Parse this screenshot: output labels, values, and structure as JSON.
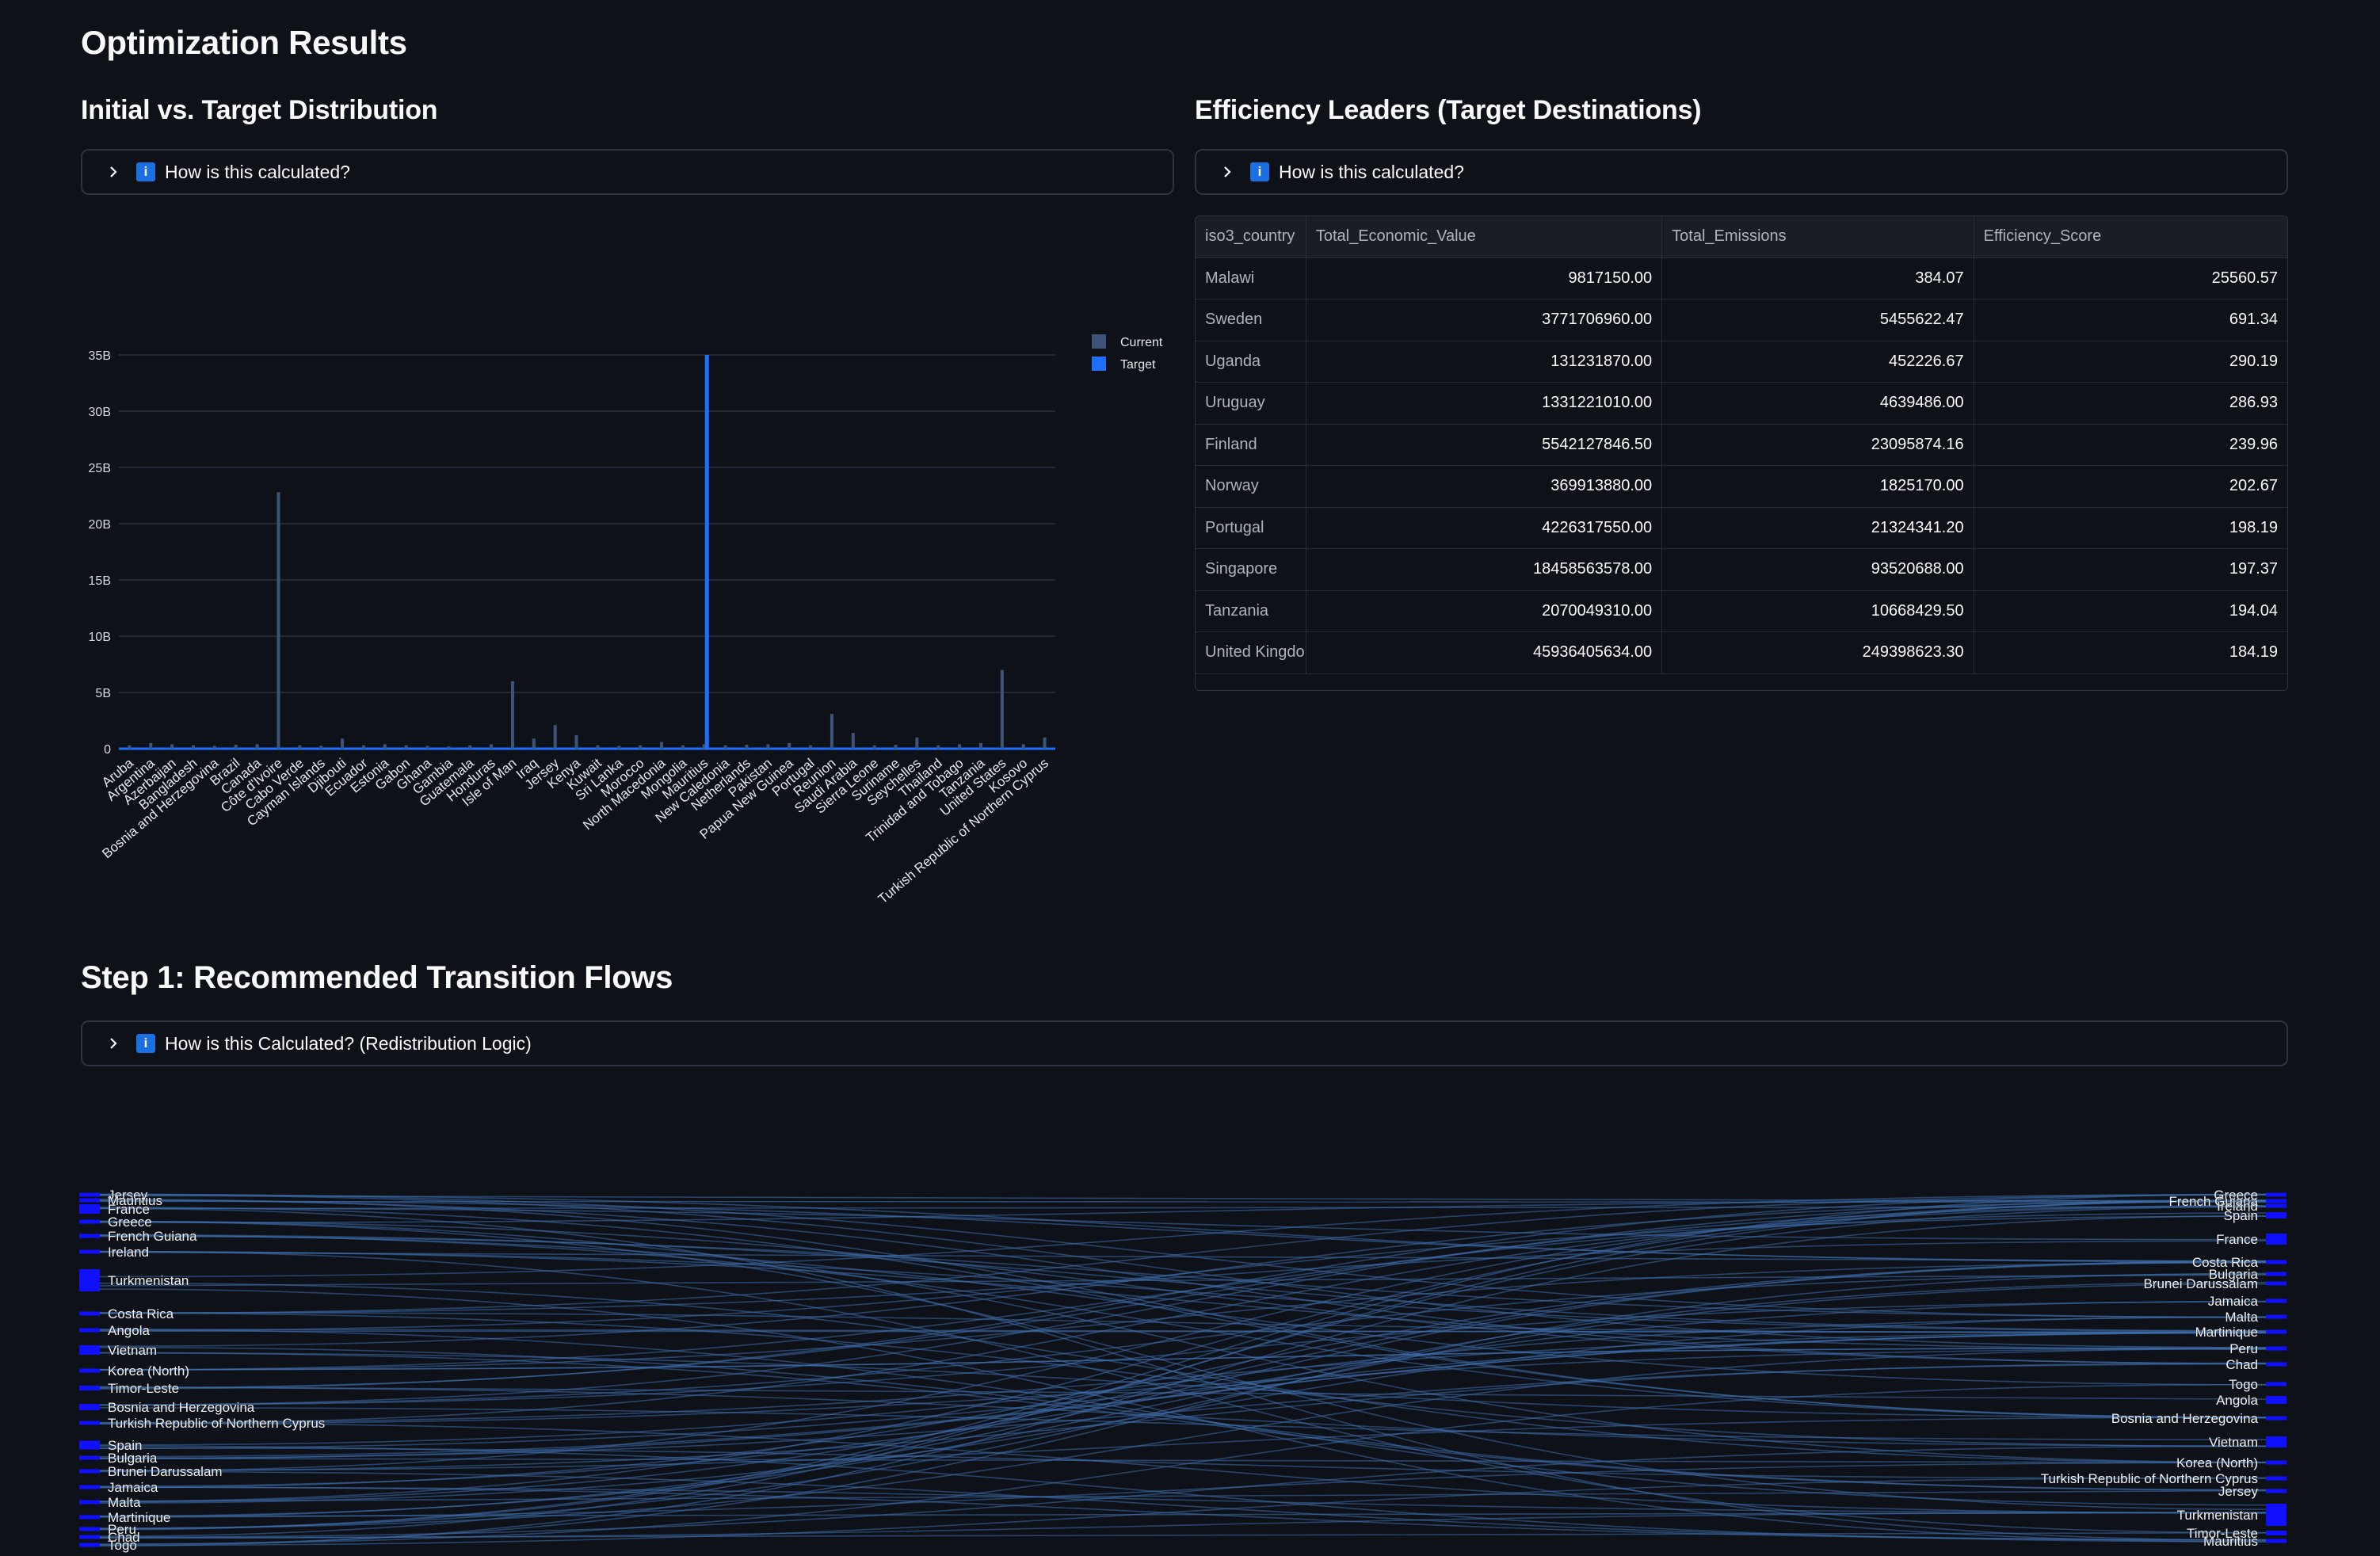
{
  "page_title": "Optimization Results",
  "chart_section": {
    "title": "Initial vs. Target Distribution",
    "expander_label": "How is this calculated?"
  },
  "table_section": {
    "title": "Efficiency Leaders (Target Destinations)",
    "expander_label": "How is this calculated?",
    "columns": [
      "iso3_country",
      "Total_Economic_Value",
      "Total_Emissions",
      "Efficiency_Score"
    ],
    "rows": [
      [
        "Malawi",
        "9817150.00",
        "384.07",
        "25560.57"
      ],
      [
        "Sweden",
        "3771706960.00",
        "5455622.47",
        "691.34"
      ],
      [
        "Uganda",
        "131231870.00",
        "452226.67",
        "290.19"
      ],
      [
        "Uruguay",
        "1331221010.00",
        "4639486.00",
        "286.93"
      ],
      [
        "Finland",
        "5542127846.50",
        "23095874.16",
        "239.96"
      ],
      [
        "Norway",
        "369913880.00",
        "1825170.00",
        "202.67"
      ],
      [
        "Portugal",
        "4226317550.00",
        "21324341.20",
        "198.19"
      ],
      [
        "Singapore",
        "18458563578.00",
        "93520688.00",
        "197.37"
      ],
      [
        "Tanzania",
        "2070049310.00",
        "10668429.50",
        "194.04"
      ],
      [
        "United Kingdo",
        "45936405634.00",
        "249398623.30",
        "184.19"
      ]
    ]
  },
  "flows_section": {
    "title": "Step 1: Recommended Transition Flows",
    "expander_label": "How is this Calculated? (Redistribution Logic)"
  },
  "chart_data": {
    "type": "bar",
    "title": "",
    "xlabel": "",
    "ylabel": "",
    "ylim": [
      0,
      35000000000
    ],
    "ytick_labels": [
      "0",
      "5B",
      "10B",
      "15B",
      "20B",
      "25B",
      "30B",
      "35B"
    ],
    "ytick_values": [
      0,
      5000000000,
      10000000000,
      15000000000,
      20000000000,
      25000000000,
      30000000000,
      35000000000
    ],
    "legend_position": "top-right",
    "categories": [
      "Aruba",
      "Argentina",
      "Azerbaijan",
      "Bangladesh",
      "Bosnia and Herzegovina",
      "Brazil",
      "Canada",
      "Côte d'Ivoire",
      "Cabo Verde",
      "Cayman Islands",
      "Djibouti",
      "Ecuador",
      "Estonia",
      "Gabon",
      "Ghana",
      "Gambia",
      "Guatemala",
      "Honduras",
      "Isle of Man",
      "Iraq",
      "Jersey",
      "Kenya",
      "Kuwait",
      "Sri Lanka",
      "Morocco",
      "North Macedonia",
      "Mongolia",
      "Mauritius",
      "New Caledonia",
      "Netherlands",
      "Pakistan",
      "Papua New Guinea",
      "Portugal",
      "Reunion",
      "Saudi Arabia",
      "Sierra Leone",
      "Suriname",
      "Seychelles",
      "Thailand",
      "Trinidad and Tobago",
      "Tanzania",
      "United States",
      "Kosovo",
      "Turkish Republic of Northern Cyprus"
    ],
    "series": [
      {
        "name": "Current",
        "color": "#3d5478",
        "values": [
          300000000,
          500000000,
          400000000,
          300000000,
          250000000,
          350000000,
          400000000,
          22800000000,
          300000000,
          250000000,
          900000000,
          300000000,
          400000000,
          300000000,
          250000000,
          200000000,
          300000000,
          400000000,
          6000000000,
          900000000,
          2100000000,
          1200000000,
          300000000,
          250000000,
          300000000,
          600000000,
          300000000,
          400000000,
          300000000,
          350000000,
          400000000,
          500000000,
          300000000,
          3100000000,
          1400000000,
          300000000,
          350000000,
          1000000000,
          300000000,
          400000000,
          500000000,
          7000000000,
          400000000,
          1000000000
        ]
      },
      {
        "name": "Target",
        "color": "#1f6fff",
        "values": [
          0,
          0,
          0,
          0,
          0,
          0,
          0,
          0,
          0,
          0,
          0,
          0,
          0,
          0,
          0,
          0,
          0,
          0,
          0,
          0,
          0,
          0,
          0,
          0,
          0,
          0,
          0,
          35000000000,
          0,
          0,
          0,
          0,
          0,
          0,
          0,
          0,
          0,
          0,
          0,
          0,
          0,
          0,
          0,
          0
        ]
      }
    ]
  },
  "sankey_data": {
    "sources": [
      "Jersey",
      "Mauritius",
      "France",
      "Greece",
      "French Guiana",
      "Ireland",
      "Turkmenistan",
      "Costa Rica",
      "Angola",
      "Vietnam",
      "Korea (North)",
      "Timor-Leste",
      "Bosnia and Herzegovina",
      "Turkish Republic of Northern Cyprus",
      "Spain",
      "Bulgaria",
      "Brunei Darussalam",
      "Jamaica",
      "Malta",
      "Martinique",
      "Peru",
      "Chad",
      "Togo"
    ],
    "targets": [
      "Greece",
      "French Guiana",
      "Ireland",
      "Spain",
      "France",
      "Costa Rica",
      "Bulgaria",
      "Brunei Darussalam",
      "Jamaica",
      "Malta",
      "Martinique",
      "Peru",
      "Chad",
      "Togo",
      "Angola",
      "Bosnia and Herzegovina",
      "Vietnam",
      "Korea (North)",
      "Turkish Republic of Northern Cyprus",
      "Jersey",
      "Turkmenistan",
      "Timor-Leste",
      "Mauritius"
    ],
    "node_color": "#1010ff",
    "link_color": "#3f6fae"
  }
}
